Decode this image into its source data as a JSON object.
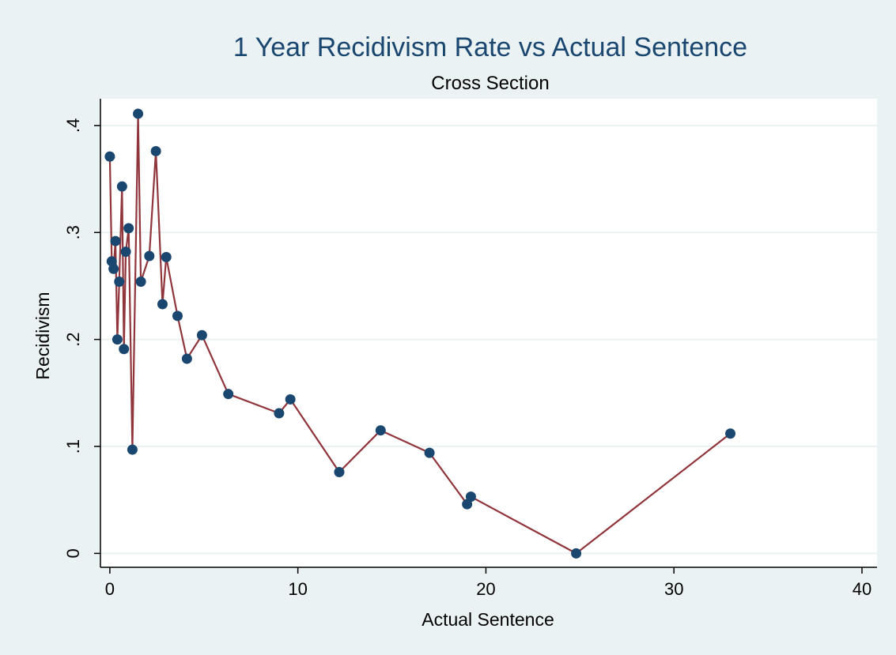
{
  "chart_data": {
    "type": "line",
    "title": "1 Year Recidivism Rate vs Actual Sentence",
    "subtitle": "Cross Section",
    "xlabel": "Actual Sentence",
    "ylabel": "Recidivism",
    "xlim": [
      -0.5,
      40.8
    ],
    "ylim": [
      -0.013,
      0.425
    ],
    "x_ticks": [
      {
        "value": 0,
        "label": "0"
      },
      {
        "value": 10,
        "label": "10"
      },
      {
        "value": 20,
        "label": "20"
      },
      {
        "value": 30,
        "label": "30"
      },
      {
        "value": 40,
        "label": "40"
      }
    ],
    "y_ticks": [
      {
        "value": 0,
        "label": "0"
      },
      {
        "value": 0.1,
        "label": ".1"
      },
      {
        "value": 0.2,
        "label": ".2"
      },
      {
        "value": 0.3,
        "label": ".3"
      },
      {
        "value": 0.4,
        "label": ".4"
      }
    ],
    "grid": "horizontal",
    "legend": "none",
    "colors": {
      "background": "#eaf2f3",
      "plot_background": "#ffffff",
      "line": "#90353b",
      "marker": "#1a476f",
      "title": "#1a476f",
      "grid": "#eaf2f3"
    },
    "series": [
      {
        "x": [
          0,
          0.1,
          0.2,
          0.3,
          0.4,
          0.5,
          0.65,
          0.75,
          0.85,
          1.0,
          1.2,
          1.5,
          1.65,
          2.1,
          2.45,
          2.8,
          3.0,
          3.6,
          4.1,
          4.9,
          6.3,
          9.0,
          9.6,
          12.2,
          14.4,
          17.0,
          19.0,
          19.2,
          24.8,
          33.0
        ],
        "y": [
          0.371,
          0.273,
          0.266,
          0.292,
          0.2,
          0.254,
          0.343,
          0.191,
          0.282,
          0.304,
          0.097,
          0.411,
          0.254,
          0.278,
          0.376,
          0.233,
          0.277,
          0.222,
          0.182,
          0.204,
          0.149,
          0.131,
          0.144,
          0.076,
          0.115,
          0.094,
          0.046,
          0.053,
          0.0,
          0.112
        ]
      }
    ]
  }
}
